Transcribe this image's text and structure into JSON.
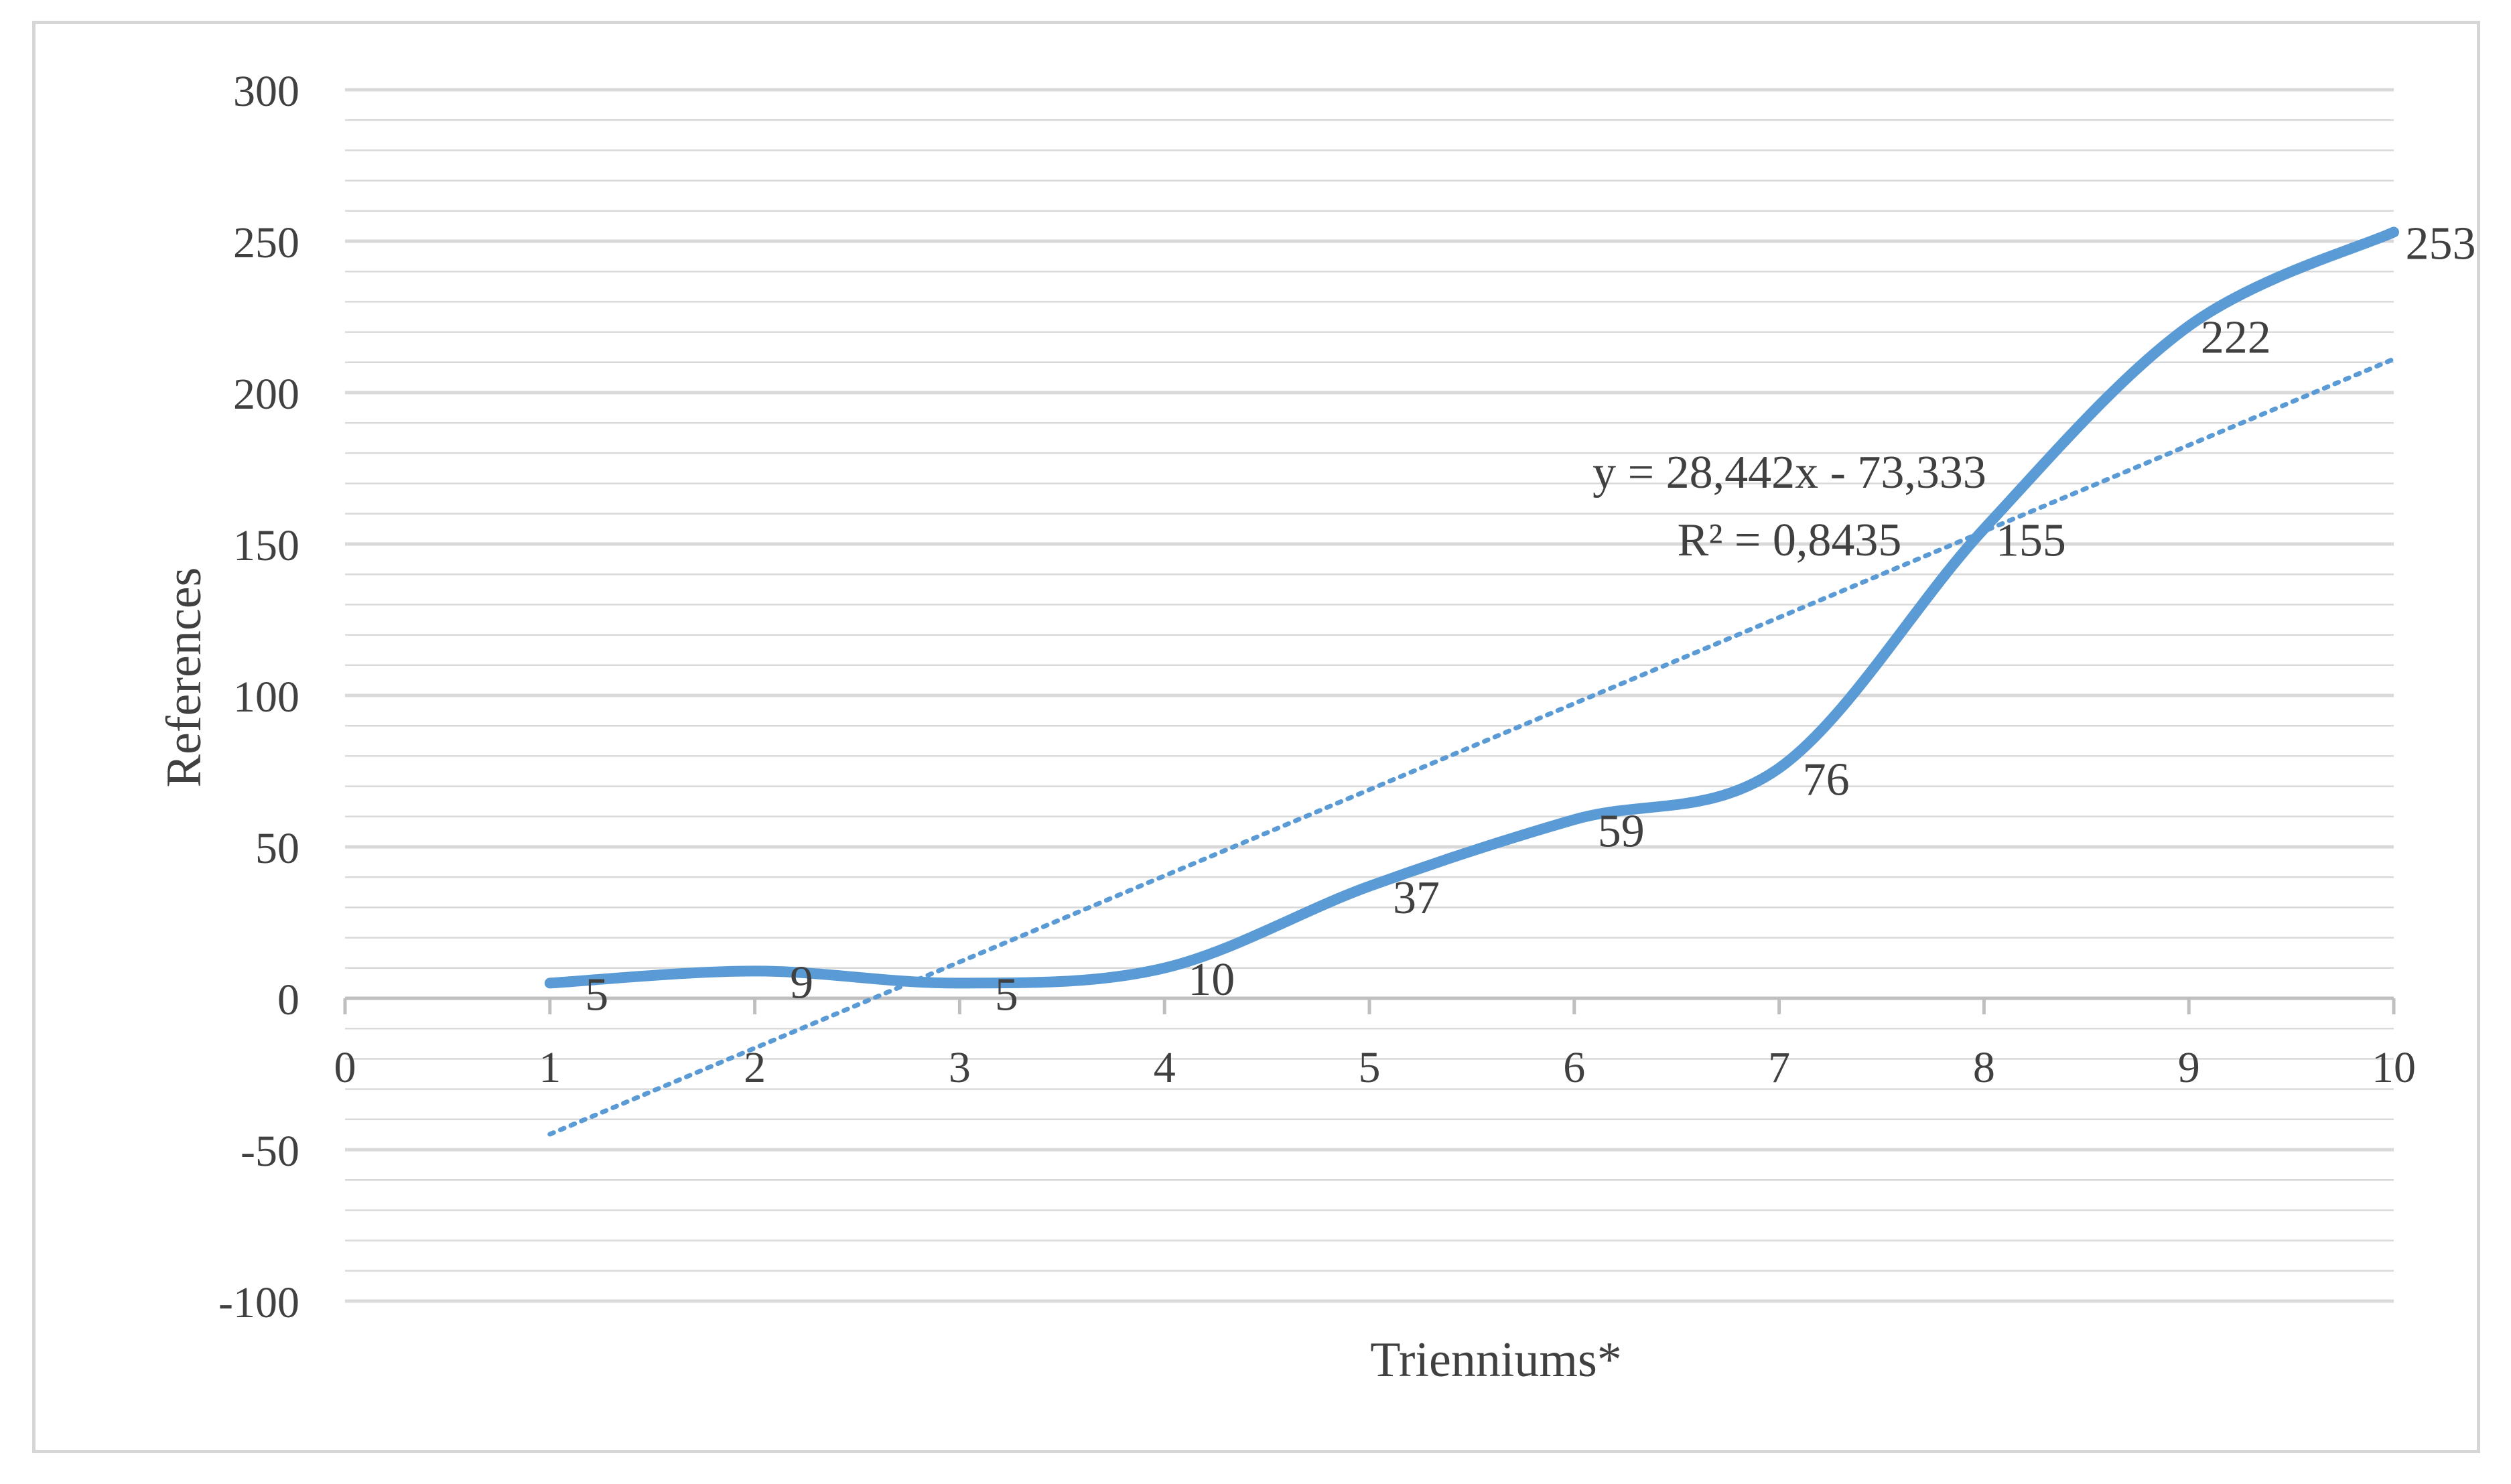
{
  "chart_data": {
    "type": "line",
    "title": "",
    "xlabel": "Trienniums*",
    "ylabel": "References",
    "xlim": [
      0,
      10
    ],
    "ylim": [
      -100,
      300
    ],
    "x_ticks": [
      "0",
      "1",
      "2",
      "3",
      "4",
      "5",
      "6",
      "7",
      "8",
      "9",
      "10"
    ],
    "y_ticks": [
      "300",
      "250",
      "200",
      "150",
      "100",
      "50",
      "0",
      "-50",
      "-100"
    ],
    "grid": true,
    "legend": "none",
    "series": [
      {
        "x": [
          1,
          2,
          3,
          4,
          5,
          6,
          7,
          8,
          9,
          10
        ],
        "values": [
          5,
          9,
          5,
          10,
          37,
          59,
          76,
          155,
          222,
          253
        ],
        "data_labels": [
          "5",
          "9",
          "5",
          "10",
          "37",
          "59",
          "76",
          "155",
          "222",
          "253"
        ],
        "color": "#5b9bd5",
        "smooth": true
      }
    ],
    "trendline": {
      "type": "linear",
      "slope": 28.442,
      "intercept": -73.333,
      "x_range": [
        1,
        10
      ],
      "style": "dotted",
      "color": "#5b9bd5",
      "equation_text": "y = 28,442x - 73,333",
      "r2_text": "R² = 0,8435"
    }
  },
  "colors": {
    "gridline": "#d9d9d9",
    "axis": "#bfbfbf",
    "text": "#404040",
    "frame": "#d6d6d6"
  }
}
